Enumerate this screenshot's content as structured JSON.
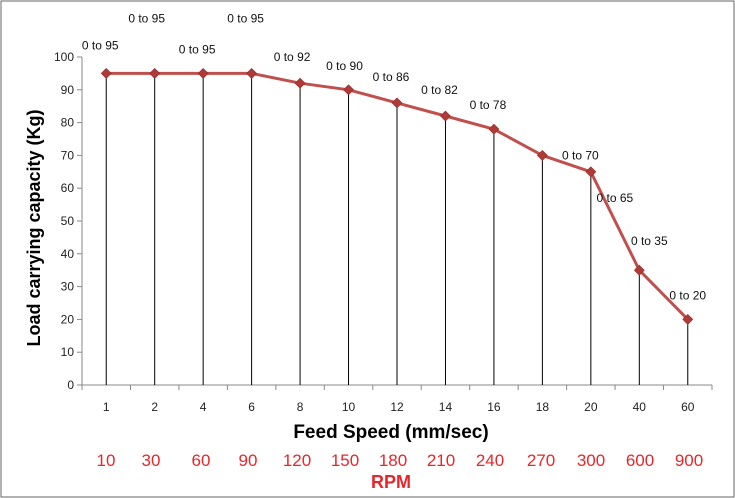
{
  "chart_data": {
    "type": "line",
    "categories": [
      "1",
      "2",
      "4",
      "6",
      "8",
      "10",
      "12",
      "14",
      "16",
      "18",
      "20",
      "40",
      "60"
    ],
    "values": [
      95,
      95,
      95,
      95,
      92,
      90,
      86,
      82,
      78,
      70,
      65,
      35,
      20
    ],
    "data_labels": [
      "0 to 95",
      "0 to 95",
      "0 to 95",
      "0 to 95",
      "0 to 92",
      "0 to 90",
      "0 to 86",
      "0 to 82",
      "0 to 78",
      "0 to 70",
      "0 to 65",
      "0 to 35",
      "0 to 20"
    ],
    "ylabel": "Load carrying capacity (Kg)",
    "xlabel": "Feed Speed (mm/sec)",
    "ylim": [
      0,
      100
    ],
    "yticks": [
      "0",
      "10",
      "20",
      "30",
      "40",
      "50",
      "60",
      "70",
      "80",
      "90",
      "100"
    ],
    "secondary_axis": {
      "title": "RPM",
      "labels": [
        "10",
        "30",
        "60",
        "90",
        "120",
        "150",
        "180",
        "210",
        "240",
        "270",
        "300",
        "600",
        "900"
      ]
    },
    "grid": false,
    "drop_lines": true,
    "colors": {
      "series": "#c0504d",
      "marker": "#b03a37",
      "rpm": "#e8262a"
    }
  }
}
